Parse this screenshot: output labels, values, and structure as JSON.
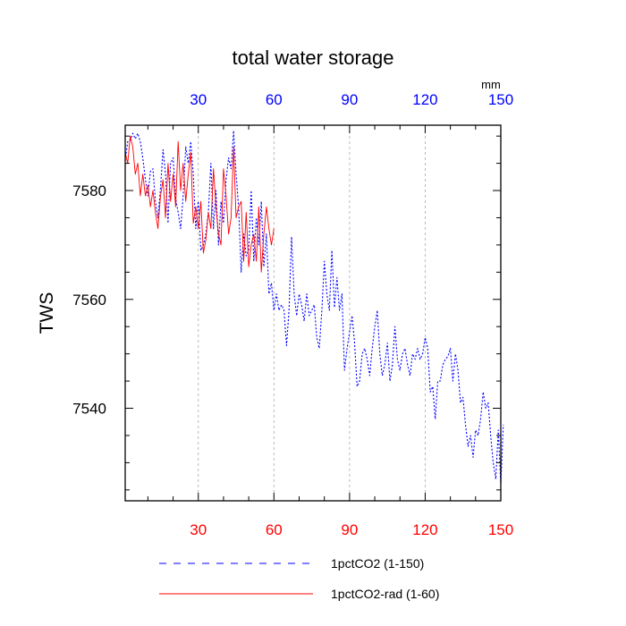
{
  "chart_data": {
    "type": "line",
    "title": "total water storage",
    "ylabel": "TWS",
    "xlabel": "",
    "top_axis_unit": "mm",
    "xlim": [
      1,
      150
    ],
    "ylim": [
      7523,
      7592
    ],
    "x_ticks": [
      30,
      60,
      90,
      120,
      150
    ],
    "y_ticks": [
      7540,
      7560,
      7580
    ],
    "grid": "vertical dashed at x ticks",
    "bottom_tick_color": "#ff0000",
    "top_tick_color": "#0000ff",
    "legend_position": "bottom",
    "series": [
      {
        "name": "1pctCO2 (1-150)",
        "color": "#0000ff",
        "style": "dotted",
        "values": [
          7585.5,
          7589.0,
          7589.2,
          7590.5,
          7589.5,
          7590.5,
          7589.0,
          7586.0,
          7582.0,
          7579.0,
          7583.5,
          7584.0,
          7578.0,
          7575.0,
          7580.5,
          7587.5,
          7583.0,
          7574.0,
          7585.0,
          7586.0,
          7578.5,
          7576.0,
          7573.0,
          7579.0,
          7588.0,
          7585.0,
          7589.0,
          7583.0,
          7573.0,
          7578.0,
          7569.0,
          7570.0,
          7572.0,
          7576.0,
          7585.0,
          7573.0,
          7580.0,
          7570.0,
          7578.0,
          7574.0,
          7582.0,
          7586.0,
          7584.0,
          7591.0,
          7583.0,
          7577.0,
          7565.0,
          7572.0,
          7568.0,
          7569.0,
          7580.0,
          7567.0,
          7575.0,
          7570.0,
          7578.0,
          7566.0,
          7572.0,
          7561.0,
          7563.0,
          7558.0,
          7561.0,
          7558.0,
          7559.0,
          7558.0,
          7551.5,
          7558.0,
          7571.5,
          7561.0,
          7557.0,
          7561.0,
          7559.0,
          7556.0,
          7561.0,
          7557.0,
          7558.0,
          7559.0,
          7553.0,
          7551.0,
          7558.0,
          7567.0,
          7561.0,
          7558.0,
          7569.0,
          7558.5,
          7564.0,
          7558.0,
          7561.0,
          7547.0,
          7551.0,
          7554.0,
          7557.0,
          7552.0,
          7544.0,
          7545.0,
          7550.0,
          7551.0,
          7549.0,
          7546.0,
          7551.0,
          7555.0,
          7558.0,
          7550.0,
          7546.0,
          7548.0,
          7552.0,
          7545.0,
          7548.0,
          7555.0,
          7549.0,
          7547.0,
          7550.0,
          7551.0,
          7548.0,
          7546.0,
          7550.0,
          7549.0,
          7551.0,
          7549.0,
          7550.0,
          7553.0,
          7551.0,
          7543.0,
          7544.0,
          7538.0,
          7545.0,
          7545.0,
          7548.0,
          7549.0,
          7549.5,
          7551.0,
          7545.0,
          7550.0,
          7547.0,
          7541.0,
          7542.0,
          7537.0,
          7533.0,
          7535.0,
          7531.0,
          7536.0,
          7535.0,
          7538.0,
          7543.0,
          7540.0,
          7541.0,
          7535.0,
          7530.0,
          7527.0,
          7536.0,
          7526.0,
          7537.0
        ]
      },
      {
        "name": "1pctCO2-rad (1-60)",
        "color": "#ff0000",
        "style": "solid",
        "values": [
          7587.0,
          7585.0,
          7590.0,
          7588.0,
          7583.0,
          7585.0,
          7579.0,
          7583.0,
          7579.0,
          7581.0,
          7577.0,
          7580.0,
          7576.0,
          7573.0,
          7579.0,
          7582.0,
          7575.0,
          7585.0,
          7578.0,
          7583.0,
          7577.0,
          7589.0,
          7580.0,
          7585.0,
          7578.0,
          7583.0,
          7587.0,
          7574.0,
          7577.0,
          7573.0,
          7578.0,
          7568.5,
          7571.0,
          7576.0,
          7573.0,
          7584.0,
          7577.0,
          7572.0,
          7570.0,
          7584.0,
          7579.0,
          7572.0,
          7575.0,
          7588.0,
          7575.0,
          7577.0,
          7578.0,
          7567.0,
          7576.0,
          7566.0,
          7570.0,
          7572.0,
          7567.0,
          7577.0,
          7565.0,
          7572.0,
          7577.0,
          7573.0,
          7570.0,
          7573.0
        ]
      }
    ]
  }
}
